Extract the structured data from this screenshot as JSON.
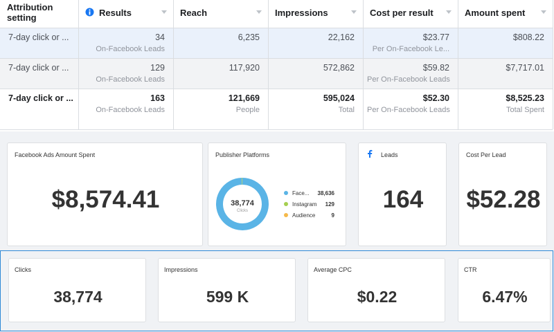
{
  "table": {
    "header": [
      "Attribution setting",
      "Results",
      "Reach",
      "Impressions",
      "Cost per result",
      "Amount spent"
    ],
    "rows": [
      [
        {
          "main": "7-day click or ..."
        },
        {
          "main": "34",
          "sub": "On-Facebook Leads"
        },
        {
          "main": "6,235"
        },
        {
          "main": "22,162"
        },
        {
          "main": "$23.77",
          "sub": "Per On-Facebook Le..."
        },
        {
          "main": "$808.22"
        }
      ],
      [
        {
          "main": "7-day click or ..."
        },
        {
          "main": "129",
          "sub": "On-Facebook Leads"
        },
        {
          "main": "117,920"
        },
        {
          "main": "572,862"
        },
        {
          "main": "$59.82",
          "sub": "Per On-Facebook Leads"
        },
        {
          "main": "$7,717.01"
        }
      ],
      [
        {
          "main": "7-day click or ..."
        },
        {
          "main": "163",
          "sub": "On-Facebook Leads"
        },
        {
          "main": "121,669",
          "sub": "People"
        },
        {
          "main": "595,024",
          "sub": "Total"
        },
        {
          "main": "$52.30",
          "sub": "Per On-Facebook Leads"
        },
        {
          "main": "$8,525.23",
          "sub": "Total Spent"
        }
      ]
    ]
  },
  "cards_top": [
    {
      "title": "Facebook Ads Amount Spent",
      "value": "$8,574.41"
    },
    {
      "title": "Leads",
      "value": "164"
    },
    {
      "title": "Cost Per Lead",
      "value": "$52.28"
    }
  ],
  "chart_data": {
    "type": "pie",
    "title": "Publisher Platforms",
    "categories": [
      "Face...",
      "Instagram",
      "Audience"
    ],
    "values": [
      38636,
      129,
      9
    ],
    "value_labels": [
      "38,636",
      "129",
      "9"
    ],
    "colors": [
      "#5ab4e6",
      "#a5cf4f",
      "#f5b94a"
    ],
    "center_value": "38,774",
    "center_label": "Clicks"
  },
  "cards_bottom": [
    {
      "title": "Clicks",
      "value": "38,774"
    },
    {
      "title": "Impressions",
      "value": "599 K"
    },
    {
      "title": "Average CPC",
      "value": "$0.22"
    },
    {
      "title": "CTR",
      "value": "6.47%"
    }
  ]
}
